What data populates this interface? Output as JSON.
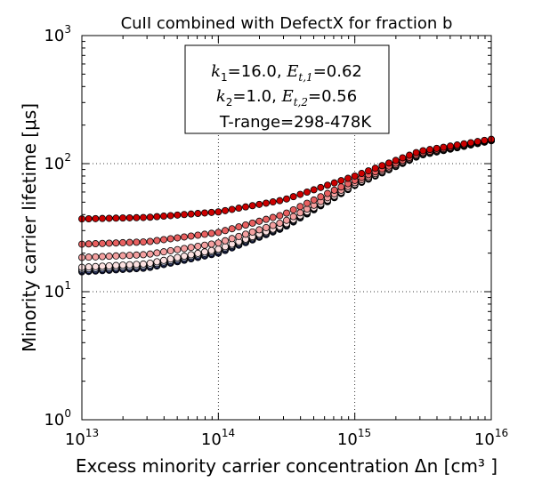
{
  "chart_data": {
    "type": "scatter",
    "title": "CuII combined with DefectX for fraction b",
    "xlabel": "Excess minority carrier concentration Δn [cm³ ]",
    "ylabel": "Minority carrier lifetime [μs]",
    "x_scale": "log",
    "y_scale": "log",
    "xlim": [
      10000000000000.0,
      1e+16
    ],
    "ylim": [
      1,
      1000
    ],
    "grid": true,
    "grid_style": "dotted",
    "x_ticks": [
      {
        "base": "10",
        "exp": "13"
      },
      {
        "base": "10",
        "exp": "14"
      },
      {
        "base": "10",
        "exp": "15"
      },
      {
        "base": "10",
        "exp": "16"
      }
    ],
    "y_ticks": [
      {
        "base": "10",
        "exp": "0"
      },
      {
        "base": "10",
        "exp": "1"
      },
      {
        "base": "10",
        "exp": "2"
      },
      {
        "base": "10",
        "exp": "3"
      }
    ],
    "annotation": {
      "line1": {
        "k_sym": "k",
        "k_sub": "1",
        "k_val": "=16.0, ",
        "e_sym": "E",
        "e_sub": "t,1",
        "e_val": "=0.62"
      },
      "line2": {
        "k_sym": "k",
        "k_sub": "2",
        "k_val": "=1.0, ",
        "e_sym": "E",
        "e_sub": "t,2",
        "e_val": "=0.56"
      },
      "line3": "T-range=298-478K",
      "position": "top-center"
    },
    "series": [
      {
        "color": "#cc0000",
        "points": [
          [
            10000000000000.0,
            37
          ],
          [
            30000000000000.0,
            38
          ],
          [
            100000000000000.0,
            42
          ],
          [
            300000000000000.0,
            52
          ],
          [
            1000000000000000.0,
            80
          ],
          [
            3000000000000000.0,
            125
          ],
          [
            1e+16,
            155
          ]
        ]
      },
      {
        "color": "#e86060",
        "points": [
          [
            10000000000000.0,
            23.5
          ],
          [
            30000000000000.0,
            24.5
          ],
          [
            100000000000000.0,
            29
          ],
          [
            300000000000000.0,
            40
          ],
          [
            1000000000000000.0,
            74
          ],
          [
            3000000000000000.0,
            121
          ],
          [
            1e+16,
            154
          ]
        ]
      },
      {
        "color": "#f4a0a0",
        "points": [
          [
            10000000000000.0,
            18.5
          ],
          [
            30000000000000.0,
            19.5
          ],
          [
            100000000000000.0,
            24
          ],
          [
            300000000000000.0,
            35
          ],
          [
            1000000000000000.0,
            71
          ],
          [
            3000000000000000.0,
            119
          ],
          [
            1e+16,
            153
          ]
        ]
      },
      {
        "color": "#fbe0e0",
        "points": [
          [
            10000000000000.0,
            15.5
          ],
          [
            30000000000000.0,
            16.5
          ],
          [
            100000000000000.0,
            21.5
          ],
          [
            300000000000000.0,
            33
          ],
          [
            1000000000000000.0,
            69
          ],
          [
            3000000000000000.0,
            118
          ],
          [
            1e+16,
            152
          ]
        ]
      },
      {
        "color": "#d8dcef",
        "points": [
          [
            10000000000000.0,
            15
          ],
          [
            30000000000000.0,
            16
          ],
          [
            100000000000000.0,
            21
          ],
          [
            300000000000000.0,
            32.5
          ],
          [
            1000000000000000.0,
            68.5
          ],
          [
            3000000000000000.0,
            117
          ],
          [
            1e+16,
            152
          ]
        ]
      },
      {
        "color": "#5060a0",
        "points": [
          [
            10000000000000.0,
            14.6
          ],
          [
            30000000000000.0,
            15.6
          ],
          [
            100000000000000.0,
            20.5
          ],
          [
            300000000000000.0,
            32
          ],
          [
            1000000000000000.0,
            68
          ],
          [
            3000000000000000.0,
            117
          ],
          [
            1e+16,
            151
          ]
        ]
      },
      {
        "color": "#0a1550",
        "points": [
          [
            10000000000000.0,
            14.3
          ],
          [
            30000000000000.0,
            15.3
          ],
          [
            100000000000000.0,
            20
          ],
          [
            300000000000000.0,
            31.5
          ],
          [
            1000000000000000.0,
            67.5
          ],
          [
            3000000000000000.0,
            116
          ],
          [
            1e+16,
            151
          ]
        ]
      }
    ]
  }
}
